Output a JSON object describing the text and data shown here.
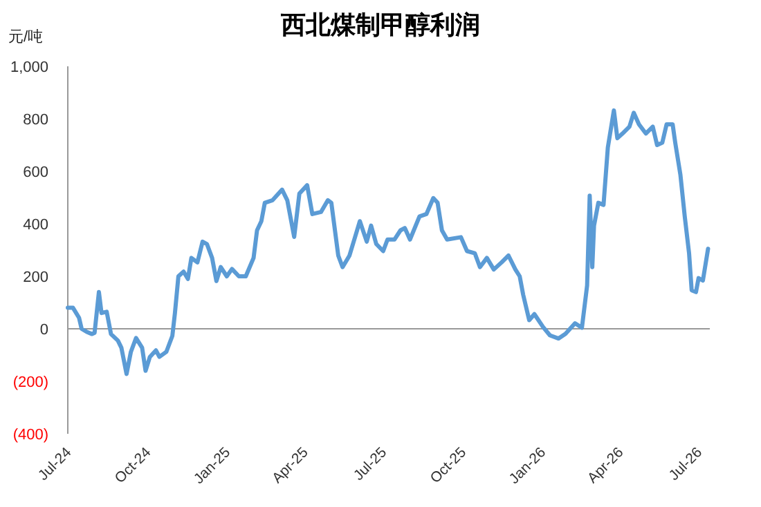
{
  "chart_data": {
    "type": "line",
    "title": "西北煤制甲醇利润",
    "ylabel": "元/吨",
    "x": [
      "2024-07-01",
      "2024-07-07",
      "2024-07-14",
      "2024-07-17",
      "2024-07-23",
      "2024-07-29",
      "2024-08-01",
      "2024-08-06",
      "2024-08-09",
      "2024-08-15",
      "2024-08-20",
      "2024-08-28",
      "2024-09-01",
      "2024-09-07",
      "2024-09-12",
      "2024-09-18",
      "2024-09-25",
      "2024-09-29",
      "2024-10-04",
      "2024-10-11",
      "2024-10-15",
      "2024-10-23",
      "2024-10-30",
      "2024-11-02",
      "2024-11-06",
      "2024-11-12",
      "2024-11-17",
      "2024-11-21",
      "2024-11-28",
      "2024-12-04",
      "2024-12-09",
      "2024-12-15",
      "2024-12-20",
      "2024-12-25",
      "2025-01-01",
      "2025-01-07",
      "2025-01-15",
      "2025-01-23",
      "2025-02-01",
      "2025-02-05",
      "2025-02-10",
      "2025-02-14",
      "2025-02-23",
      "2025-03-06",
      "2025-03-12",
      "2025-03-20",
      "2025-03-26",
      "2025-04-04",
      "2025-04-10",
      "2025-04-20",
      "2025-04-28",
      "2025-05-02",
      "2025-05-10",
      "2025-05-15",
      "2025-05-23",
      "2025-06-04",
      "2025-06-12",
      "2025-06-17",
      "2025-06-23",
      "2025-07-01",
      "2025-07-06",
      "2025-07-14",
      "2025-07-21",
      "2025-07-26",
      "2025-08-01",
      "2025-08-12",
      "2025-08-20",
      "2025-08-28",
      "2025-09-02",
      "2025-09-07",
      "2025-09-13",
      "2025-09-29",
      "2025-10-06",
      "2025-10-15",
      "2025-10-21",
      "2025-10-29",
      "2025-11-06",
      "2025-11-15",
      "2025-11-23",
      "2025-12-01",
      "2025-12-06",
      "2025-12-10",
      "2025-12-17",
      "2025-12-23",
      "2026-01-02",
      "2026-01-10",
      "2026-01-20",
      "2026-01-28",
      "2026-02-08",
      "2026-02-16",
      "2026-02-22",
      "2026-02-25",
      "2026-02-28",
      "2026-03-02",
      "2026-03-07",
      "2026-03-13",
      "2026-03-18",
      "2026-03-25",
      "2026-03-29",
      "2026-04-04",
      "2026-04-12",
      "2026-04-17",
      "2026-04-23",
      "2026-05-01",
      "2026-05-09",
      "2026-05-14",
      "2026-05-20",
      "2026-05-25",
      "2026-06-01",
      "2026-06-04",
      "2026-06-10",
      "2026-06-15",
      "2026-06-20",
      "2026-06-23",
      "2026-06-28",
      "2026-07-01",
      "2026-07-06",
      "2026-07-12"
    ],
    "series": [
      {
        "color": "#5b9bd5",
        "values": [
          80,
          80,
          42,
          0,
          -12,
          -20,
          -15,
          140,
          60,
          65,
          -20,
          -45,
          -72,
          -172,
          -88,
          -35,
          -72,
          -160,
          -107,
          -82,
          -107,
          -88,
          -27,
          60,
          200,
          218,
          190,
          270,
          253,
          332,
          323,
          270,
          182,
          235,
          200,
          228,
          200,
          200,
          270,
          375,
          410,
          480,
          490,
          530,
          490,
          350,
          515,
          547,
          437,
          445,
          490,
          480,
          279,
          235,
          279,
          410,
          332,
          393,
          323,
          296,
          340,
          340,
          375,
          384,
          340,
          428,
          437,
          498,
          480,
          375,
          340,
          349,
          296,
          288,
          235,
          270,
          226,
          253,
          279,
          226,
          200,
          130,
          33,
          56,
          7,
          -25,
          -37,
          -19,
          21,
          4,
          165,
          507,
          235,
          393,
          480,
          472,
          691,
          832,
          726,
          744,
          770,
          823,
          779,
          744,
          770,
          700,
          709,
          779,
          779,
          709,
          586,
          428,
          288,
          147,
          140,
          193,
          184,
          305
        ]
      }
    ],
    "xlim": [
      "2024-07-01",
      "2026-07-14"
    ],
    "xticks": [
      {
        "value": "2024-07-01",
        "label": "Jul-24"
      },
      {
        "value": "2024-10-01",
        "label": "Oct-24"
      },
      {
        "value": "2025-01-01",
        "label": "Jan-25"
      },
      {
        "value": "2025-04-01",
        "label": "Apr-25"
      },
      {
        "value": "2025-07-01",
        "label": "Jul-25"
      },
      {
        "value": "2025-10-01",
        "label": "Oct-25"
      },
      {
        "value": "2026-01-01",
        "label": "Jan-26"
      },
      {
        "value": "2026-04-01",
        "label": "Apr-26"
      },
      {
        "value": "2026-07-01",
        "label": "Jul-26"
      }
    ],
    "ylim": [
      -400,
      1000
    ],
    "yticks": [
      {
        "value": 1000,
        "label": "1,000"
      },
      800,
      600,
      400,
      200,
      0,
      {
        "value": -200,
        "label": "(200)"
      },
      {
        "value": -400,
        "label": "(400)"
      }
    ],
    "marker": "none",
    "line_style": "solid"
  }
}
